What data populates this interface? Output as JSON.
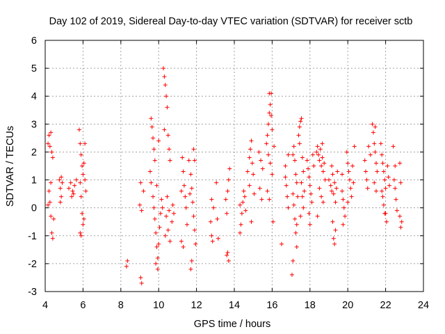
{
  "chart_data": {
    "type": "scatter",
    "title": "Day 102 of 2019, Sidereal Day-to-day VTEC variation (SDTVAR) for receiver sctb",
    "xlabel": "GPS time / hours",
    "ylabel": "SDTVAR / TECUs",
    "xlim": [
      4,
      24
    ],
    "ylim": [
      -3,
      6
    ],
    "xticks": [
      4,
      6,
      8,
      10,
      12,
      14,
      16,
      18,
      20,
      22,
      24
    ],
    "yticks": [
      -3,
      -2,
      -1,
      0,
      1,
      2,
      3,
      4,
      5,
      6
    ],
    "xtick_labels": [
      "4",
      "6",
      "8",
      "10",
      "12",
      "14",
      "16",
      "18",
      "20",
      "22",
      "24"
    ],
    "ytick_labels": [
      "-3",
      "-2",
      "-1",
      "0",
      "1",
      "2",
      "3",
      "4",
      "5",
      "6"
    ],
    "grid": true,
    "marker": "+",
    "color": "#ff0000",
    "series": [
      {
        "name": "SDTVAR",
        "points": [
          [
            4.15,
            2.3
          ],
          [
            4.2,
            2.6
          ],
          [
            4.25,
            2.2
          ],
          [
            4.3,
            2.7
          ],
          [
            4.35,
            2.0
          ],
          [
            4.4,
            1.8
          ],
          [
            4.2,
            0.6
          ],
          [
            4.25,
            0.2
          ],
          [
            4.3,
            -0.3
          ],
          [
            4.35,
            -0.9
          ],
          [
            4.4,
            -1.1
          ],
          [
            4.45,
            -0.4
          ],
          [
            4.3,
            0.9
          ],
          [
            4.15,
            0.1
          ],
          [
            4.75,
            1.0
          ],
          [
            4.8,
            0.7
          ],
          [
            4.85,
            0.4
          ],
          [
            4.8,
            0.2
          ],
          [
            4.9,
            0.9
          ],
          [
            4.85,
            1.1
          ],
          [
            5.25,
            0.7
          ],
          [
            5.35,
            0.9
          ],
          [
            5.45,
            0.6
          ],
          [
            5.55,
            0.8
          ],
          [
            5.65,
            1.0
          ],
          [
            5.5,
            0.5
          ],
          [
            5.4,
            0.4
          ],
          [
            5.8,
            2.8
          ],
          [
            5.85,
            2.3
          ],
          [
            5.9,
            1.9
          ],
          [
            5.95,
            1.5
          ],
          [
            6.0,
            1.2
          ],
          [
            6.05,
            1.6
          ],
          [
            6.1,
            1.0
          ],
          [
            6.15,
            0.6
          ],
          [
            6.1,
            2.3
          ],
          [
            5.85,
            0.9
          ],
          [
            5.9,
            0.4
          ],
          [
            5.95,
            -0.2
          ],
          [
            6.0,
            -0.6
          ],
          [
            5.85,
            -0.9
          ],
          [
            5.9,
            -1.0
          ],
          [
            6.05,
            -0.4
          ],
          [
            8.3,
            -2.1
          ],
          [
            8.35,
            -1.9
          ],
          [
            9.05,
            -2.5
          ],
          [
            9.1,
            -2.7
          ],
          [
            9.0,
            0.1
          ],
          [
            9.1,
            -0.1
          ],
          [
            9.05,
            0.9
          ],
          [
            9.2,
            0.6
          ],
          [
            9.6,
            3.2
          ],
          [
            9.65,
            2.9
          ],
          [
            9.7,
            2.5
          ],
          [
            9.75,
            2.1
          ],
          [
            9.8,
            1.7
          ],
          [
            9.55,
            1.3
          ],
          [
            9.6,
            0.9
          ],
          [
            9.7,
            0.4
          ],
          [
            9.75,
            0.0
          ],
          [
            9.8,
            -0.4
          ],
          [
            9.85,
            -0.9
          ],
          [
            9.9,
            -1.4
          ],
          [
            9.95,
            -1.8
          ],
          [
            10.0,
            -1.3
          ],
          [
            10.05,
            -0.7
          ],
          [
            10.1,
            -0.2
          ],
          [
            10.15,
            0.3
          ],
          [
            9.9,
            0.8
          ],
          [
            10.0,
            2.4
          ],
          [
            9.85,
            -2.0
          ],
          [
            9.95,
            -2.2
          ],
          [
            10.25,
            5.0
          ],
          [
            10.3,
            4.7
          ],
          [
            10.35,
            4.4
          ],
          [
            10.4,
            4.0
          ],
          [
            10.45,
            3.6
          ],
          [
            10.3,
            2.8
          ],
          [
            10.5,
            2.6
          ],
          [
            10.55,
            2.1
          ],
          [
            10.6,
            1.7
          ],
          [
            10.4,
            -0.3
          ],
          [
            10.5,
            -0.8
          ],
          [
            10.6,
            -1.2
          ],
          [
            10.7,
            -0.5
          ],
          [
            10.75,
            0.1
          ],
          [
            10.8,
            -0.2
          ],
          [
            10.45,
            0.4
          ],
          [
            10.35,
            -1.0
          ],
          [
            10.55,
            -0.1
          ],
          [
            10.2,
            0.0
          ],
          [
            11.2,
            -1.2
          ],
          [
            11.3,
            -1.4
          ],
          [
            11.25,
            1.8
          ],
          [
            11.3,
            1.3
          ],
          [
            11.35,
            0.8
          ],
          [
            11.4,
            0.4
          ],
          [
            11.45,
            0.0
          ],
          [
            11.5,
            -0.6
          ],
          [
            11.2,
            0.6
          ],
          [
            11.6,
            1.7
          ],
          [
            11.7,
            1.2
          ],
          [
            11.75,
            0.7
          ],
          [
            11.8,
            0.2
          ],
          [
            11.85,
            -0.3
          ],
          [
            11.9,
            -0.8
          ],
          [
            11.95,
            -1.3
          ],
          [
            11.75,
            -1.9
          ],
          [
            11.7,
            -2.2
          ],
          [
            11.85,
            2.1
          ],
          [
            11.9,
            1.7
          ],
          [
            11.65,
            0.5
          ],
          [
            12.75,
            -0.5
          ],
          [
            12.8,
            -1.0
          ],
          [
            12.85,
            -1.2
          ],
          [
            12.8,
            0.3
          ],
          [
            12.9,
            0.0
          ],
          [
            13.1,
            -0.4
          ],
          [
            13.15,
            -1.1
          ],
          [
            13.05,
            0.9
          ],
          [
            13.55,
            0.3
          ],
          [
            13.6,
            -0.2
          ],
          [
            13.65,
            0.6
          ],
          [
            13.7,
            1.0
          ],
          [
            13.75,
            1.4
          ],
          [
            13.6,
            -1.7
          ],
          [
            13.7,
            -1.9
          ],
          [
            13.65,
            -1.6
          ],
          [
            14.3,
            -0.9
          ],
          [
            14.35,
            -0.6
          ],
          [
            14.4,
            -0.2
          ],
          [
            14.45,
            0.2
          ],
          [
            14.5,
            0.6
          ],
          [
            14.55,
            0.4
          ],
          [
            14.3,
            0.1
          ],
          [
            14.6,
            -0.1
          ],
          [
            14.7,
            1.3
          ],
          [
            14.8,
            1.8
          ],
          [
            14.85,
            2.1
          ],
          [
            14.9,
            2.4
          ],
          [
            14.95,
            1.6
          ],
          [
            15.0,
            1.2
          ],
          [
            14.8,
            0.8
          ],
          [
            15.05,
            0.5
          ],
          [
            14.9,
            -0.5
          ],
          [
            15.3,
            2.0
          ],
          [
            15.4,
            1.7
          ],
          [
            15.5,
            1.4
          ],
          [
            15.35,
            0.7
          ],
          [
            15.45,
            0.3
          ],
          [
            15.7,
            2.3
          ],
          [
            15.75,
            2.6
          ],
          [
            15.8,
            3.0
          ],
          [
            15.85,
            3.4
          ],
          [
            15.9,
            3.7
          ],
          [
            15.95,
            3.3
          ],
          [
            16.0,
            2.8
          ],
          [
            15.85,
            4.1
          ],
          [
            15.95,
            4.1
          ],
          [
            15.8,
            1.9
          ],
          [
            15.9,
            1.6
          ],
          [
            16.0,
            1.2
          ],
          [
            15.75,
            0.6
          ],
          [
            15.85,
            0.3
          ],
          [
            16.1,
            2.2
          ],
          [
            16.05,
            -0.5
          ],
          [
            16.5,
            -1.3
          ],
          [
            16.7,
            1.1
          ],
          [
            16.75,
            0.8
          ],
          [
            16.8,
            0.4
          ],
          [
            16.85,
            0.0
          ],
          [
            16.7,
            1.5
          ],
          [
            16.85,
            1.9
          ],
          [
            17.1,
            1.9
          ],
          [
            17.15,
            2.2
          ],
          [
            17.2,
            1.7
          ],
          [
            17.25,
            1.2
          ],
          [
            17.3,
            0.9
          ],
          [
            17.1,
            0.5
          ],
          [
            17.15,
            0.1
          ],
          [
            17.2,
            -0.4
          ],
          [
            17.25,
            -0.9
          ],
          [
            17.3,
            -1.4
          ],
          [
            17.1,
            -1.9
          ],
          [
            17.05,
            -2.4
          ],
          [
            17.35,
            0.4
          ],
          [
            17.3,
            -0.6
          ],
          [
            17.4,
            2.6
          ],
          [
            17.45,
            2.9
          ],
          [
            17.5,
            3.1
          ],
          [
            17.55,
            3.2
          ],
          [
            17.45,
            2.3
          ],
          [
            17.6,
            1.8
          ],
          [
            17.65,
            1.3
          ],
          [
            17.55,
            0.9
          ],
          [
            17.6,
            0.4
          ],
          [
            17.65,
            0.0
          ],
          [
            17.5,
            -0.3
          ],
          [
            17.7,
            0.6
          ],
          [
            17.85,
            1.7
          ],
          [
            17.9,
            1.4
          ],
          [
            17.95,
            1.1
          ],
          [
            18.0,
            0.8
          ],
          [
            18.05,
            0.5
          ],
          [
            18.1,
            0.2
          ],
          [
            17.95,
            -0.2
          ],
          [
            18.0,
            -0.6
          ],
          [
            18.15,
            1.9
          ],
          [
            18.2,
            1.5
          ],
          [
            18.35,
            2.0
          ],
          [
            18.4,
            2.2
          ],
          [
            18.45,
            1.9
          ],
          [
            18.5,
            1.7
          ],
          [
            18.55,
            2.1
          ],
          [
            18.6,
            1.5
          ],
          [
            18.65,
            1.8
          ],
          [
            18.7,
            1.3
          ],
          [
            18.75,
            1.6
          ],
          [
            18.8,
            1.0
          ],
          [
            18.5,
            0.7
          ],
          [
            18.6,
            0.4
          ],
          [
            18.7,
            0.2
          ],
          [
            18.4,
            -0.3
          ],
          [
            18.65,
            2.3
          ],
          [
            19.0,
            1.0
          ],
          [
            19.1,
            0.8
          ],
          [
            19.15,
            0.6
          ],
          [
            19.2,
            1.2
          ],
          [
            19.25,
            0.5
          ],
          [
            19.3,
            0.9
          ],
          [
            19.35,
            0.2
          ],
          [
            19.4,
            0.7
          ],
          [
            19.2,
            -0.5
          ],
          [
            19.25,
            -1.1
          ],
          [
            19.3,
            -1.3
          ],
          [
            19.35,
            -0.8
          ],
          [
            19.45,
            1.3
          ],
          [
            19.15,
            1.5
          ],
          [
            19.7,
            0.6
          ],
          [
            19.75,
            0.3
          ],
          [
            19.8,
            0.0
          ],
          [
            19.85,
            -0.3
          ],
          [
            19.75,
            -0.6
          ],
          [
            19.7,
            1.2
          ],
          [
            19.95,
            2.0
          ],
          [
            20.0,
            1.6
          ],
          [
            20.05,
            1.3
          ],
          [
            20.1,
            1.0
          ],
          [
            20.15,
            0.7
          ],
          [
            20.2,
            0.4
          ],
          [
            20.25,
            1.5
          ],
          [
            20.3,
            0.9
          ],
          [
            20.0,
            0.2
          ],
          [
            20.35,
            2.2
          ],
          [
            20.9,
            1.7
          ],
          [
            20.95,
            1.3
          ],
          [
            21.0,
            1.0
          ],
          [
            21.05,
            0.7
          ],
          [
            21.1,
            2.2
          ],
          [
            21.2,
            1.9
          ],
          [
            21.3,
            3.0
          ],
          [
            21.35,
            2.7
          ],
          [
            21.4,
            2.3
          ],
          [
            21.45,
            2.0
          ],
          [
            21.5,
            1.6
          ],
          [
            21.55,
            1.3
          ],
          [
            21.4,
            0.9
          ],
          [
            21.5,
            0.6
          ],
          [
            21.45,
            2.9
          ],
          [
            21.75,
            2.3
          ],
          [
            21.8,
            1.9
          ],
          [
            21.85,
            1.6
          ],
          [
            21.9,
            1.3
          ],
          [
            21.95,
            1.0
          ],
          [
            22.0,
            0.7
          ],
          [
            21.85,
            0.4
          ],
          [
            21.9,
            0.1
          ],
          [
            22.0,
            -0.2
          ],
          [
            22.05,
            -0.5
          ],
          [
            21.95,
            -0.2
          ],
          [
            22.1,
            1.5
          ],
          [
            22.15,
            1.1
          ],
          [
            22.2,
            0.8
          ],
          [
            21.8,
            0.6
          ],
          [
            22.45,
            1.0
          ],
          [
            22.5,
            0.7
          ],
          [
            22.55,
            0.3
          ],
          [
            22.6,
            -0.1
          ],
          [
            22.5,
            1.5
          ],
          [
            22.4,
            2.2
          ],
          [
            22.75,
            1.6
          ],
          [
            22.8,
            0.9
          ],
          [
            22.85,
            -0.5
          ],
          [
            22.8,
            -0.7
          ],
          [
            22.75,
            -0.3
          ]
        ]
      }
    ]
  }
}
